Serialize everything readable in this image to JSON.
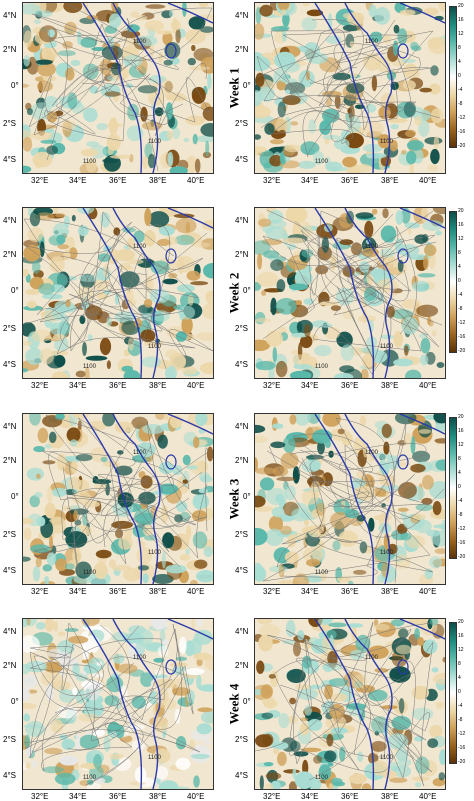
{
  "rows": [
    {
      "week_label": "Week 1"
    },
    {
      "week_label": "Week 2"
    },
    {
      "week_label": "Week 3"
    },
    {
      "week_label": "Week 4"
    }
  ],
  "lat_ticks": [
    "4°N",
    "2°N",
    "0°",
    "2°S",
    "4°S"
  ],
  "lon_ticks": [
    "32°E",
    "34°E",
    "36°E",
    "38°E",
    "40°E"
  ],
  "contour_label": "1100",
  "colorbar_ticks": [
    "20",
    "16",
    "12",
    "8",
    "4",
    "0",
    "-4",
    "-8",
    "-12",
    "-16",
    "-20"
  ],
  "colors": {
    "wet_dark": "#0f4f4a",
    "wet": "#58b8aa",
    "wet_light": "#a9ddd3",
    "dry_light": "#ecd7a9",
    "dry": "#cfa15a",
    "dry_dark": "#7a4a12",
    "rift_contour": "#2b3aa8",
    "land": "#f1e6cf"
  }
}
